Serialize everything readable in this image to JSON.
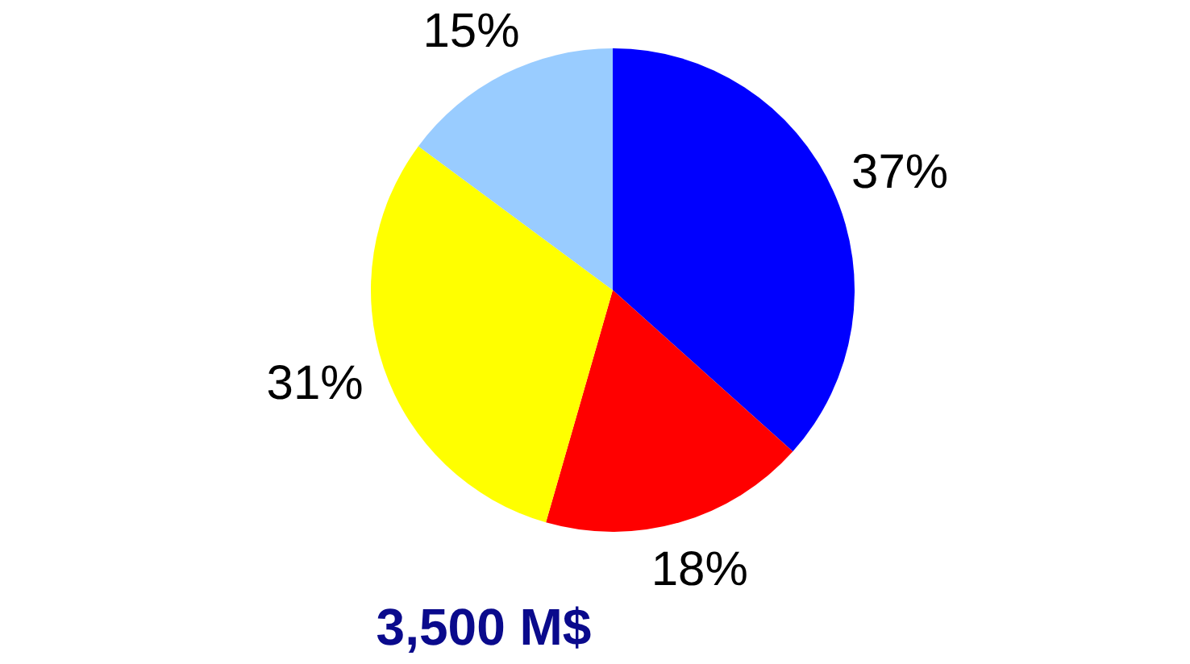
{
  "chart_data": {
    "type": "pie",
    "title": "3,500 M$",
    "categories": [
      null,
      null,
      null,
      null
    ],
    "values": [
      37,
      18,
      31,
      15
    ],
    "value_labels": [
      "37%",
      "18%",
      "31%",
      "15%"
    ],
    "colors": [
      "#0000ff",
      "#ff0000",
      "#ffff00",
      "#99ccff"
    ]
  }
}
